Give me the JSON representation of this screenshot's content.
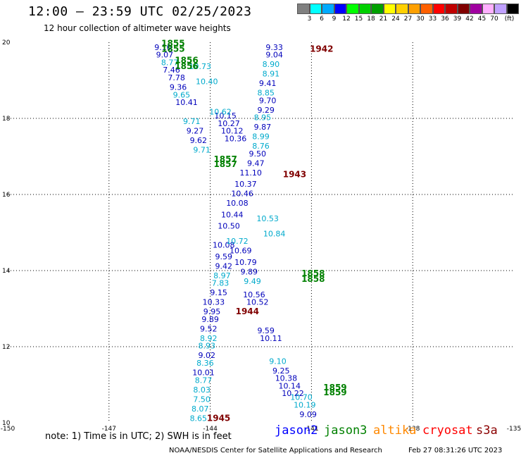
{
  "header": {
    "title": "12:00 – 23:59 UTC 02/25/2023",
    "subtitle": "12 hour collection of altimeter wave heights"
  },
  "colorbar": {
    "colors": [
      "#808080",
      "#00ffff",
      "#00aaff",
      "#0000ff",
      "#00ff00",
      "#00d000",
      "#00a000",
      "#ffff00",
      "#ffd000",
      "#ffa000",
      "#ff6000",
      "#ff0000",
      "#c00000",
      "#800000",
      "#a000a0",
      "#ffb0ff",
      "#c0a0ff",
      "#000000"
    ],
    "labels": [
      "3",
      "6",
      "9",
      "12",
      "15",
      "18",
      "21",
      "24",
      "27",
      "30",
      "33",
      "36",
      "39",
      "42",
      "45",
      "70",
      "(ft)"
    ]
  },
  "chart_data": {
    "type": "scatter",
    "xlim": [
      -150,
      -135
    ],
    "ylim": [
      10,
      20
    ],
    "x_ticks": [
      "-150",
      "-147",
      "-144",
      "-141",
      "-138",
      "-135"
    ],
    "y_ticks": [
      "10",
      "12",
      "14",
      "16",
      "18",
      "20"
    ],
    "grid": true,
    "series": [
      {
        "name": "jason2",
        "color": "#0000bb",
        "points": [
          {
            "x": -143.55,
            "y": 18.0,
            "label": "10.15"
          },
          {
            "x": -143.45,
            "y": 17.8,
            "label": "10.27"
          },
          {
            "x": -143.35,
            "y": 17.6,
            "label": "10.12"
          },
          {
            "x": -143.25,
            "y": 17.4,
            "label": "10.36"
          },
          {
            "x": -142.7,
            "y": 13.3,
            "label": "10.56"
          },
          {
            "x": -142.6,
            "y": 13.1,
            "label": "10.52"
          },
          {
            "x": -141.75,
            "y": 11.1,
            "label": "10.38"
          },
          {
            "x": -141.65,
            "y": 10.9,
            "label": "10.14"
          },
          {
            "x": -141.55,
            "y": 10.7,
            "label": "10.22"
          }
        ]
      },
      {
        "name": "jason3",
        "color": "#00aacc",
        "points": [
          {
            "x": -144.3,
            "y": 19.3,
            "label": "10.73"
          },
          {
            "x": -144.1,
            "y": 18.9,
            "label": "10.40"
          },
          {
            "x": -143.7,
            "y": 18.1,
            "label": "10.62"
          },
          {
            "x": -142.3,
            "y": 15.3,
            "label": "10.53"
          },
          {
            "x": -142.1,
            "y": 14.9,
            "label": "10.84"
          },
          {
            "x": -141.3,
            "y": 10.6,
            "label": "10.70"
          },
          {
            "x": -141.2,
            "y": 10.4,
            "label": "10.19"
          }
        ]
      }
    ],
    "annotations": [
      {
        "x": -142.1,
        "y": 19.8,
        "text": "9.33",
        "color": "#0000bb"
      },
      {
        "x": -142.1,
        "y": 19.6,
        "text": "9.04",
        "color": "#0000bb"
      },
      {
        "x": -142.2,
        "y": 19.35,
        "text": "8.90",
        "color": "#00aacc"
      },
      {
        "x": -142.2,
        "y": 19.1,
        "text": "8.91",
        "color": "#00aacc"
      },
      {
        "x": -142.3,
        "y": 18.85,
        "text": "9.41",
        "color": "#0000bb"
      },
      {
        "x": -142.35,
        "y": 18.6,
        "text": "8.85",
        "color": "#00aacc"
      },
      {
        "x": -142.3,
        "y": 18.4,
        "text": "9.70",
        "color": "#0000bb"
      },
      {
        "x": -142.35,
        "y": 18.15,
        "text": "9.29",
        "color": "#0000bb"
      },
      {
        "x": -142.45,
        "y": 17.95,
        "text": "8.95",
        "color": "#00aacc"
      },
      {
        "x": -142.45,
        "y": 17.7,
        "text": "9.87",
        "color": "#0000bb"
      },
      {
        "x": -142.5,
        "y": 17.45,
        "text": "8.99",
        "color": "#00aacc"
      },
      {
        "x": -142.5,
        "y": 17.2,
        "text": "8.76",
        "color": "#00aacc"
      },
      {
        "x": -142.6,
        "y": 17.0,
        "text": "9.50",
        "color": "#0000bb"
      },
      {
        "x": -142.65,
        "y": 16.75,
        "text": "9.47",
        "color": "#0000bb"
      },
      {
        "x": -142.8,
        "y": 16.5,
        "text": "11.10",
        "color": "#0000bb"
      },
      {
        "x": -142.95,
        "y": 16.2,
        "text": "10.37",
        "color": "#0000bb"
      },
      {
        "x": -143.05,
        "y": 15.95,
        "text": "10.46",
        "color": "#0000bb"
      },
      {
        "x": -143.2,
        "y": 15.7,
        "text": "10.08",
        "color": "#0000bb"
      },
      {
        "x": -143.35,
        "y": 15.4,
        "text": "10.44",
        "color": "#0000bb"
      },
      {
        "x": -143.45,
        "y": 15.1,
        "text": "10.50",
        "color": "#0000bb"
      },
      {
        "x": -143.6,
        "y": 14.6,
        "text": "10.08",
        "color": "#0000bb"
      },
      {
        "x": -143.6,
        "y": 14.3,
        "text": "9.59",
        "color": "#0000bb"
      },
      {
        "x": -143.6,
        "y": 14.05,
        "text": "9.42",
        "color": "#0000bb"
      },
      {
        "x": -143.65,
        "y": 13.8,
        "text": "8.97",
        "color": "#00aacc"
      },
      {
        "x": -143.7,
        "y": 13.6,
        "text": "7.83",
        "color": "#00aacc"
      },
      {
        "x": -143.75,
        "y": 13.35,
        "text": "9.15",
        "color": "#0000bb"
      },
      {
        "x": -143.9,
        "y": 13.1,
        "text": "10.33",
        "color": "#0000bb"
      },
      {
        "x": -143.95,
        "y": 12.85,
        "text": "9.95",
        "color": "#0000bb"
      },
      {
        "x": -144.0,
        "y": 12.65,
        "text": "9.89",
        "color": "#0000bb"
      },
      {
        "x": -144.05,
        "y": 12.4,
        "text": "9.52",
        "color": "#0000bb"
      },
      {
        "x": -144.05,
        "y": 12.15,
        "text": "8.92",
        "color": "#00aacc"
      },
      {
        "x": -144.1,
        "y": 11.95,
        "text": "8.93",
        "color": "#00aacc"
      },
      {
        "x": -144.1,
        "y": 11.7,
        "text": "9.02",
        "color": "#0000bb"
      },
      {
        "x": -144.15,
        "y": 11.5,
        "text": "8.36",
        "color": "#00aacc"
      },
      {
        "x": -144.2,
        "y": 11.25,
        "text": "10.01",
        "color": "#0000bb"
      },
      {
        "x": -144.2,
        "y": 11.05,
        "text": "8.77",
        "color": "#00aacc"
      },
      {
        "x": -144.25,
        "y": 10.8,
        "text": "8.03",
        "color": "#00aacc"
      },
      {
        "x": -144.25,
        "y": 10.55,
        "text": "7.50",
        "color": "#00aacc"
      },
      {
        "x": -144.3,
        "y": 10.3,
        "text": "8.07",
        "color": "#00aacc"
      },
      {
        "x": -144.35,
        "y": 10.05,
        "text": "8.65",
        "color": "#00aacc"
      },
      {
        "x": -145.4,
        "y": 19.8,
        "text": "9.10",
        "color": "#0000bb"
      },
      {
        "x": -145.35,
        "y": 19.6,
        "text": "9.07",
        "color": "#0000bb"
      },
      {
        "x": -145.2,
        "y": 19.4,
        "text": "8.77",
        "color": "#00aacc"
      },
      {
        "x": -145.15,
        "y": 19.2,
        "text": "7.46",
        "color": "#0000bb"
      },
      {
        "x": -145.0,
        "y": 19.0,
        "text": "7.78",
        "color": "#0000bb"
      },
      {
        "x": -144.95,
        "y": 18.75,
        "text": "9.36",
        "color": "#0000bb"
      },
      {
        "x": -144.85,
        "y": 18.55,
        "text": "9.65",
        "color": "#00aacc"
      },
      {
        "x": -144.7,
        "y": 18.35,
        "text": "10.41",
        "color": "#0000bb"
      },
      {
        "x": -144.55,
        "y": 17.85,
        "text": "9.71",
        "color": "#00aacc"
      },
      {
        "x": -144.45,
        "y": 17.6,
        "text": "9.27",
        "color": "#0000bb"
      },
      {
        "x": -144.35,
        "y": 17.35,
        "text": "9.62",
        "color": "#0000bb"
      },
      {
        "x": -144.25,
        "y": 17.1,
        "text": "9.71",
        "color": "#00aacc"
      },
      {
        "x": -143.2,
        "y": 14.7,
        "text": "10.72",
        "color": "#00aacc"
      },
      {
        "x": -143.1,
        "y": 14.45,
        "text": "10.69",
        "color": "#0000bb"
      },
      {
        "x": -142.95,
        "y": 14.15,
        "text": "10.79",
        "color": "#0000bb"
      },
      {
        "x": -142.85,
        "y": 13.9,
        "text": "9.89",
        "color": "#0000bb"
      },
      {
        "x": -142.75,
        "y": 13.65,
        "text": "9.49",
        "color": "#00aacc"
      },
      {
        "x": -142.35,
        "y": 12.35,
        "text": "9.59",
        "color": "#0000bb"
      },
      {
        "x": -142.2,
        "y": 12.15,
        "text": "10.11",
        "color": "#0000bb"
      },
      {
        "x": -142.0,
        "y": 11.55,
        "text": "9.10",
        "color": "#00aacc"
      },
      {
        "x": -141.9,
        "y": 11.3,
        "text": "9.25",
        "color": "#0000bb"
      },
      {
        "x": -141.1,
        "y": 10.15,
        "text": "9.09",
        "color": "#0000bb"
      }
    ],
    "time_labels": [
      {
        "x": -145.1,
        "y": 19.9,
        "text": "1855",
        "color": "#008000"
      },
      {
        "x": -145.1,
        "y": 19.75,
        "text": "1855",
        "color": "#008000"
      },
      {
        "x": -144.7,
        "y": 19.45,
        "text": "1856",
        "color": "#008000"
      },
      {
        "x": -144.7,
        "y": 19.3,
        "text": "1856",
        "color": "#008000"
      },
      {
        "x": -140.7,
        "y": 19.75,
        "text": "1942",
        "color": "#800000"
      },
      {
        "x": -143.55,
        "y": 16.85,
        "text": "1857",
        "color": "#008000"
      },
      {
        "x": -143.55,
        "y": 16.72,
        "text": "1857",
        "color": "#008000"
      },
      {
        "x": -141.5,
        "y": 16.45,
        "text": "1943",
        "color": "#800000"
      },
      {
        "x": -140.95,
        "y": 13.85,
        "text": "1858",
        "color": "#008000"
      },
      {
        "x": -140.95,
        "y": 13.7,
        "text": "1858",
        "color": "#008000"
      },
      {
        "x": -142.9,
        "y": 12.85,
        "text": "1944",
        "color": "#800000"
      },
      {
        "x": -140.3,
        "y": 10.85,
        "text": "1859",
        "color": "#008000"
      },
      {
        "x": -140.3,
        "y": 10.72,
        "text": "1859",
        "color": "#008000"
      },
      {
        "x": -143.75,
        "y": 10.05,
        "text": "1945",
        "color": "#800000"
      }
    ]
  },
  "footer": {
    "note": "note:  1) Time is in UTC;  2) SWH is in feet",
    "legend": [
      {
        "label": "jason2",
        "color": "#0000ff"
      },
      {
        "label": "jason3",
        "color": "#008000"
      },
      {
        "label": "altika",
        "color": "#ff8800"
      },
      {
        "label": "cryosat",
        "color": "#ff0000"
      },
      {
        "label": "s3a",
        "color": "#8b0000"
      }
    ],
    "credit": "NOAA/NESDIS Center for Satellite Applications and Research",
    "timestamp": "Feb 27 08:31:26 UTC 2023"
  }
}
